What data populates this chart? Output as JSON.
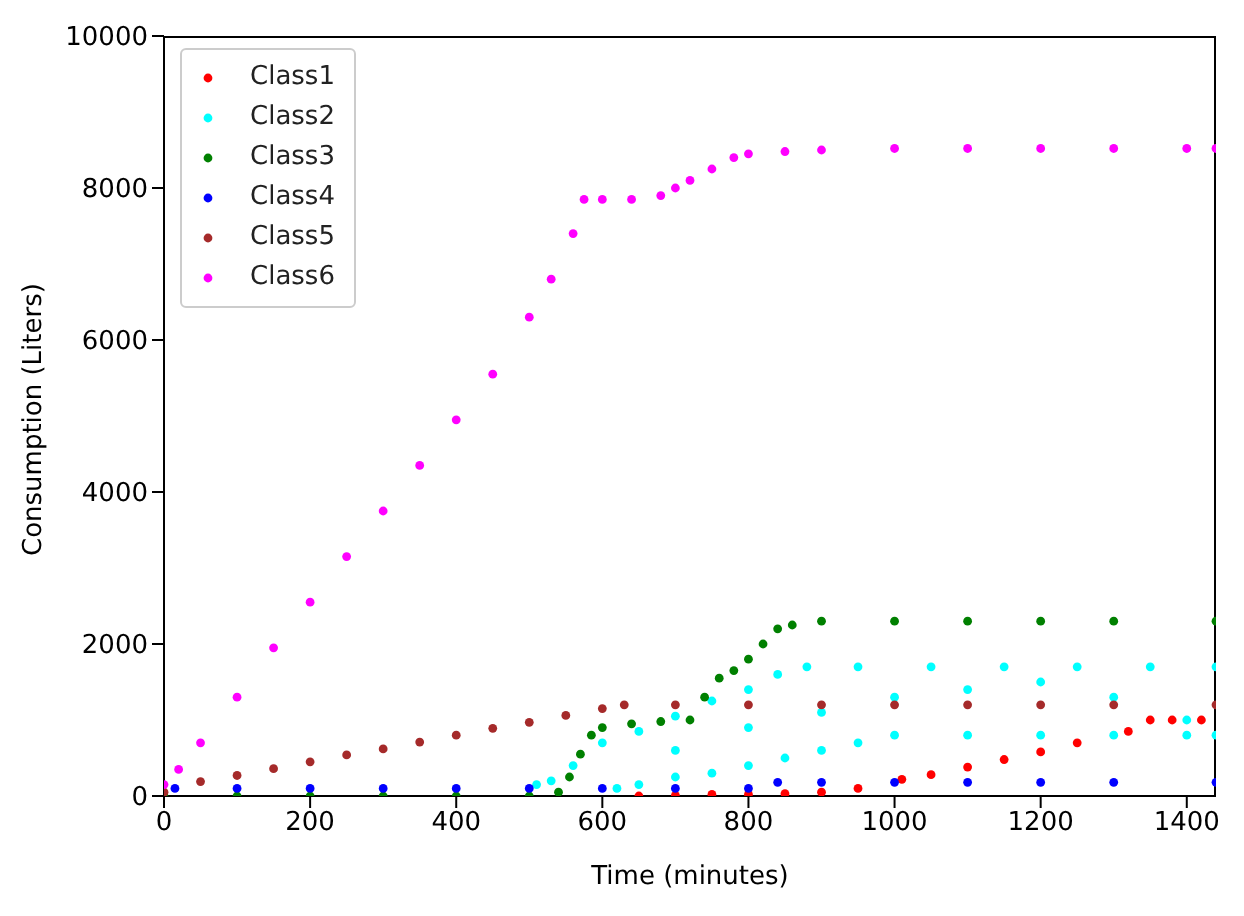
{
  "chart_data": {
    "type": "scatter",
    "xlabel": "Time (minutes)",
    "ylabel": "Consumption (Liters)",
    "xlim": [
      0,
      1440
    ],
    "ylim": [
      0,
      10000
    ],
    "xticks": [
      0,
      200,
      400,
      600,
      800,
      1000,
      1200,
      1400
    ],
    "yticks": [
      0,
      2000,
      4000,
      6000,
      8000,
      10000
    ],
    "grid": false,
    "legend": "top left",
    "marker": "circle",
    "series": [
      {
        "name": "Class1",
        "color": "#ff0000",
        "x": [
          650,
          700,
          750,
          800,
          850,
          900,
          950,
          1010,
          1050,
          1100,
          1150,
          1200,
          1250,
          1320,
          1350,
          1380,
          1420
        ],
        "values": [
          0,
          10,
          20,
          20,
          30,
          50,
          100,
          220,
          280,
          380,
          480,
          580,
          700,
          850,
          1000,
          1000,
          1000
        ]
      },
      {
        "name": "Class2",
        "color": "#00ffff",
        "x": [
          510,
          530,
          560,
          600,
          650,
          700,
          750,
          800,
          840,
          880,
          950,
          1050,
          1150,
          1250,
          1350,
          1440,
          620,
          650,
          700,
          750,
          800,
          850,
          900,
          950,
          1000,
          1100,
          1200,
          1300,
          1400,
          1440,
          700,
          800,
          900,
          1000,
          1100,
          1200,
          1300,
          1400
        ],
        "values": [
          150,
          200,
          400,
          700,
          850,
          1050,
          1250,
          1400,
          1600,
          1700,
          1700,
          1700,
          1700,
          1700,
          1700,
          1700,
          100,
          150,
          250,
          300,
          400,
          500,
          600,
          700,
          800,
          800,
          800,
          800,
          800,
          800,
          600,
          900,
          1100,
          1300,
          1400,
          1500,
          1300,
          1000
        ]
      },
      {
        "name": "Class3",
        "color": "#008000",
        "x": [
          0,
          100,
          200,
          300,
          400,
          500,
          540,
          555,
          570,
          585,
          600,
          640,
          680,
          720,
          740,
          760,
          780,
          800,
          820,
          840,
          860,
          900,
          1000,
          1100,
          1200,
          1300,
          1440
        ],
        "values": [
          0,
          0,
          0,
          0,
          0,
          0,
          50,
          250,
          550,
          800,
          900,
          950,
          980,
          1000,
          1300,
          1550,
          1650,
          1800,
          2000,
          2200,
          2250,
          2300,
          2300,
          2300,
          2300,
          2300,
          2300
        ]
      },
      {
        "name": "Class4",
        "color": "#0000ff",
        "x": [
          15,
          100,
          200,
          300,
          400,
          500,
          600,
          700,
          800,
          840,
          900,
          1000,
          1100,
          1200,
          1300,
          1440
        ],
        "values": [
          100,
          100,
          100,
          100,
          100,
          100,
          100,
          100,
          100,
          180,
          180,
          180,
          180,
          180,
          180,
          180
        ]
      },
      {
        "name": "Class5",
        "color": "#a52a2a",
        "x": [
          0,
          50,
          100,
          150,
          200,
          250,
          300,
          350,
          400,
          450,
          500,
          550,
          600,
          630,
          700,
          800,
          900,
          1000,
          1100,
          1200,
          1300,
          1440
        ],
        "values": [
          50,
          190,
          270,
          360,
          450,
          540,
          620,
          710,
          800,
          890,
          970,
          1060,
          1150,
          1200,
          1200,
          1200,
          1200,
          1200,
          1200,
          1200,
          1200,
          1200
        ]
      },
      {
        "name": "Class6",
        "color": "#ff00ff",
        "x": [
          0,
          20,
          50,
          100,
          150,
          200,
          250,
          300,
          350,
          400,
          450,
          500,
          530,
          560,
          575,
          600,
          640,
          680,
          700,
          720,
          750,
          780,
          800,
          850,
          900,
          1000,
          1100,
          1200,
          1300,
          1400,
          1440
        ],
        "values": [
          150,
          350,
          700,
          1300,
          1950,
          2550,
          3150,
          3750,
          4350,
          4950,
          5550,
          6300,
          6800,
          7400,
          7850,
          7850,
          7850,
          7900,
          8000,
          8100,
          8250,
          8400,
          8450,
          8480,
          8500,
          8520,
          8520,
          8520,
          8520,
          8520,
          8520
        ]
      }
    ]
  }
}
